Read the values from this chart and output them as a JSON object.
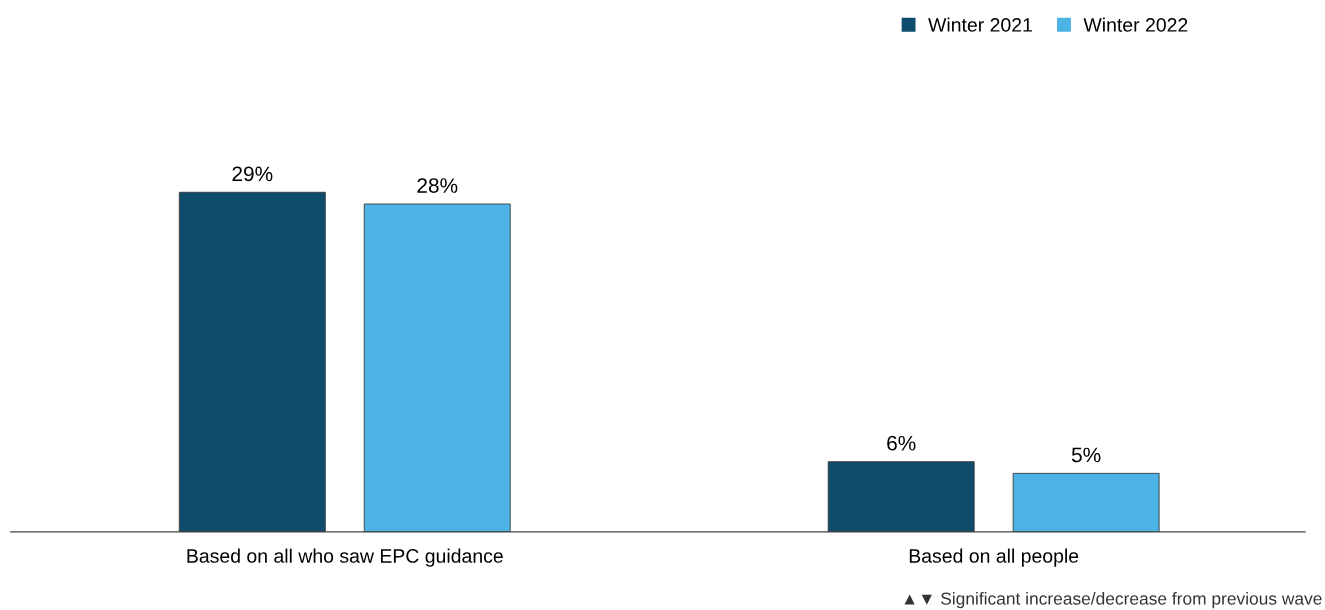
{
  "chart_data": {
    "type": "bar",
    "categories": [
      "Based on all who saw EPC guidance",
      "Based on all people"
    ],
    "series": [
      {
        "name": "Winter 2021",
        "color": "#0f4c6b",
        "values": [
          29,
          6
        ],
        "value_labels": [
          "29%",
          "6%"
        ]
      },
      {
        "name": "Winter 2022",
        "color": "#4db3e6",
        "values": [
          28,
          5
        ],
        "value_labels": [
          "28%",
          "5%"
        ]
      }
    ],
    "legend": "top right",
    "grid": false,
    "tick_labels": "x",
    "annotations": [
      "▲▼ Significant increase/decrease from previous wave"
    ]
  }
}
